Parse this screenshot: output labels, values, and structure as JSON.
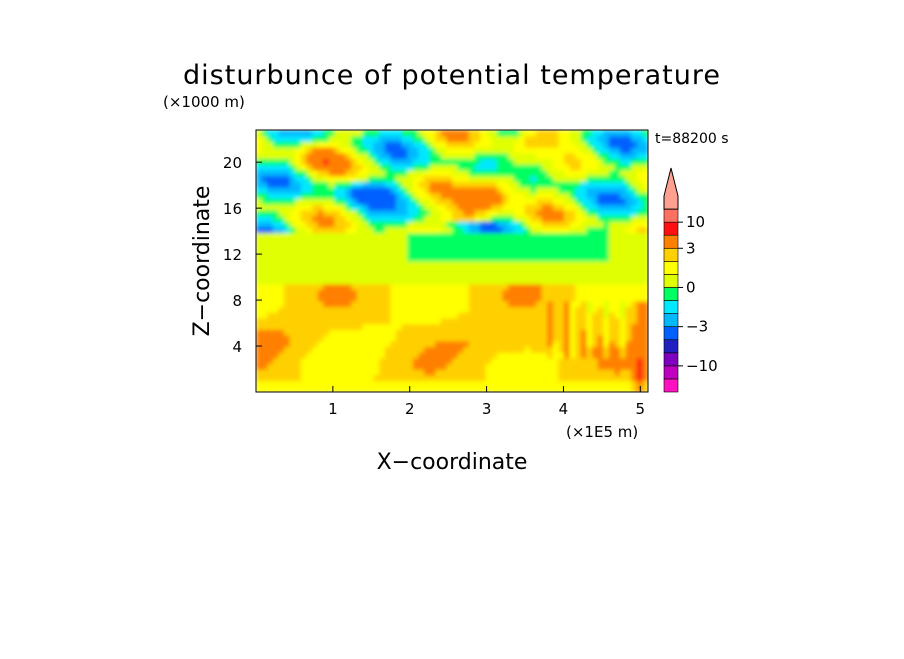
{
  "chart_data": {
    "type": "heatmap",
    "title": "disturbunce of potential temperature",
    "time_label": "t=88200 s",
    "xlabel": "X−coordinate",
    "ylabel": "Z−coordinate",
    "x_unit": "(×1E5 m)",
    "y_unit": "(×1000 m)",
    "xlim": [
      0,
      5.1
    ],
    "ylim": [
      0,
      22.8
    ],
    "x_ticks": [
      {
        "value": 1,
        "label": "1"
      },
      {
        "value": 2,
        "label": "2"
      },
      {
        "value": 3,
        "label": "3"
      },
      {
        "value": 4,
        "label": "4"
      },
      {
        "value": 5,
        "label": "5"
      }
    ],
    "y_ticks": [
      {
        "value": 4,
        "label": "4"
      },
      {
        "value": 8,
        "label": "8"
      },
      {
        "value": 12,
        "label": "12"
      },
      {
        "value": 16,
        "label": "16"
      },
      {
        "value": 20,
        "label": "20"
      }
    ],
    "colorbar": {
      "levels": [
        -16,
        -10,
        -7,
        -5,
        -3,
        -2,
        -1,
        0,
        1,
        2,
        3,
        5,
        10,
        16
      ],
      "colors": [
        "#ff10c0",
        "#c000c0",
        "#8000c0",
        "#2020c0",
        "#0060ff",
        "#00b8ff",
        "#00e8ff",
        "#00ff60",
        "#e0ff00",
        "#ffff00",
        "#ffd000",
        "#ff8000",
        "#ff1010",
        "#ff7060",
        "#ffa090"
      ],
      "tick_labels": [
        {
          "value": -10,
          "label": "−10"
        },
        {
          "value": -3,
          "label": "−3"
        },
        {
          "value": 0,
          "label": "0"
        },
        {
          "value": 3,
          "label": "3"
        },
        {
          "value": 10,
          "label": "10"
        }
      ]
    },
    "field_description_values": {
      "surface_layer": [
        1,
        2
      ],
      "lower_warm_layer_peak": 3,
      "mid_level": 0,
      "upper_negative": -3,
      "upper_positive": 8
    }
  }
}
